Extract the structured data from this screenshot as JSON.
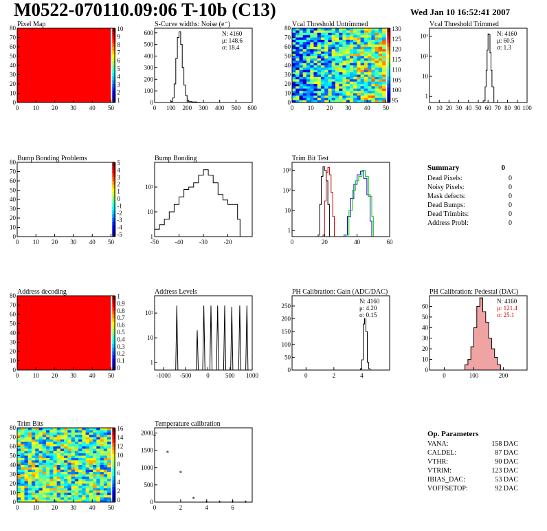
{
  "header": {
    "title": "M0522-070110.09:06 T-10b (C13)",
    "date": "Wed Jan 10 16:52:41 2007"
  },
  "panels": [
    {
      "id": "pixel-map",
      "title": "Pixel Map",
      "kind": "map",
      "fill": "#ff0000",
      "x": {
        "min": 0,
        "max": 52,
        "ticks": [
          0,
          10,
          20,
          30,
          40,
          50
        ]
      },
      "y": {
        "min": 0,
        "max": 80,
        "ticks": [
          0,
          10,
          20,
          30,
          40,
          50,
          60,
          70,
          80
        ]
      },
      "palette": {
        "labels": [
          "10",
          "9",
          "8",
          "7",
          "6",
          "5",
          "4",
          "3",
          "2",
          "1"
        ]
      }
    },
    {
      "id": "scurve-noise",
      "title": "S-Curve widths: Noise (e⁻)",
      "kind": "hist",
      "x": {
        "min": 0,
        "max": 600,
        "ticks": [
          0,
          100,
          200,
          300,
          400,
          500,
          600
        ]
      },
      "y": {
        "min": 0,
        "max": 640,
        "ticks": [
          0,
          100,
          200,
          300,
          400,
          500,
          600
        ]
      },
      "stats": [
        "N: 4160",
        "μ: 148.6",
        "σ: 18.4"
      ],
      "series": [
        {
          "color": "#000",
          "curve": [
            [
              90,
              0
            ],
            [
              100,
              8
            ],
            [
              110,
              40
            ],
            [
              120,
              160
            ],
            [
              130,
              380
            ],
            [
              140,
              560
            ],
            [
              150,
              610
            ],
            [
              160,
              500
            ],
            [
              170,
              300
            ],
            [
              180,
              150
            ],
            [
              190,
              60
            ],
            [
              200,
              20
            ],
            [
              210,
              8
            ],
            [
              230,
              4
            ],
            [
              260,
              2
            ],
            [
              280,
              0
            ]
          ]
        }
      ]
    },
    {
      "id": "vcal-untrimmed",
      "title": "Vcal Threshold Untrimmed",
      "kind": "heat",
      "x": {
        "min": 0,
        "max": 52,
        "ticks": [
          0,
          10,
          20,
          30,
          40,
          50
        ]
      },
      "y": {
        "min": 0,
        "max": 80,
        "ticks": [
          0,
          10,
          20,
          30,
          40,
          50,
          60,
          70,
          80
        ]
      },
      "palette": {
        "labels": [
          "130",
          "125",
          "120",
          "115",
          "110",
          "105",
          "100",
          "95"
        ]
      }
    },
    {
      "id": "vcal-trimmed",
      "title": "Vcal Threshold Trimmed",
      "kind": "hist",
      "log": true,
      "x": {
        "min": 0,
        "max": 100,
        "ticks": [
          0,
          10,
          20,
          30,
          40,
          50,
          60,
          70,
          80,
          90,
          100
        ]
      },
      "y": {
        "min": 0.5,
        "max": 2500,
        "ticks": [
          1,
          10,
          100,
          1000
        ],
        "tickLabels": [
          "1",
          "10",
          "10²",
          "10³"
        ]
      },
      "stats": [
        "N: 4160",
        "μ: 60.5",
        "σ:  1.3"
      ],
      "series": [
        {
          "color": "#000",
          "curve": [
            [
              55,
              0.6
            ],
            [
              57,
              3
            ],
            [
              58,
              20
            ],
            [
              59,
              200
            ],
            [
              60,
              1300
            ],
            [
              61,
              1200
            ],
            [
              62,
              150
            ],
            [
              63,
              20
            ],
            [
              64,
              3
            ],
            [
              66,
              0.6
            ]
          ]
        }
      ]
    },
    {
      "id": "bump-bonding-problems",
      "title": "Bump Bonding Problems",
      "kind": "empty",
      "x": {
        "min": 0,
        "max": 52,
        "ticks": [
          0,
          10,
          20,
          30,
          40,
          50
        ]
      },
      "y": {
        "min": 0,
        "max": 80,
        "ticks": [
          0,
          10,
          20,
          30,
          40,
          50,
          60,
          70,
          80
        ]
      },
      "palette": {
        "labels": [
          "5",
          "4",
          "3",
          "2",
          "1",
          "0",
          "-1",
          "-2",
          "-3",
          "-4",
          "-5"
        ]
      }
    },
    {
      "id": "bump-bonding",
      "title": "Bump Bonding",
      "kind": "hist",
      "log": true,
      "x": {
        "min": -50,
        "max": -10,
        "ticks": [
          -50,
          -40,
          -30,
          -20
        ]
      },
      "y": {
        "min": 1,
        "max": 1000,
        "ticks": [
          1,
          10,
          100
        ],
        "tickLabels": [
          "1",
          "10",
          "10²"
        ]
      },
      "series": [
        {
          "color": "#000",
          "curve": [
            [
              -50,
              2
            ],
            [
              -48,
              3
            ],
            [
              -46,
              5
            ],
            [
              -44,
              10
            ],
            [
              -42,
              20
            ],
            [
              -40,
              40
            ],
            [
              -38,
              80
            ],
            [
              -36,
              100
            ],
            [
              -34,
              150
            ],
            [
              -32,
              300
            ],
            [
              -30,
              500
            ],
            [
              -28,
              300
            ],
            [
              -26,
              150
            ],
            [
              -24,
              50
            ],
            [
              -22,
              30
            ],
            [
              -20,
              20
            ],
            [
              -18,
              20
            ],
            [
              -16,
              5
            ],
            [
              -15,
              1
            ]
          ]
        }
      ]
    },
    {
      "id": "trim-bit-test",
      "title": "Trim Bit Test",
      "kind": "hist",
      "log": true,
      "x": {
        "min": 0,
        "max": 60,
        "ticks": [
          0,
          20,
          40,
          60
        ]
      },
      "y": {
        "min": 0.5,
        "max": 2500,
        "ticks": [
          1,
          10,
          100,
          1000
        ],
        "tickLabels": [
          "1",
          "10",
          "10²",
          "10³"
        ]
      },
      "series": [
        {
          "color": "#000",
          "curve": [
            [
              16,
              0.6
            ],
            [
              17,
              20
            ],
            [
              18,
              500
            ],
            [
              19,
              1500
            ],
            [
              20,
              1000
            ],
            [
              21,
              300
            ],
            [
              22,
              20
            ],
            [
              23,
              0.6
            ]
          ]
        },
        {
          "color": "#cc0000",
          "curve": [
            [
              19,
              0.6
            ],
            [
              20,
              30
            ],
            [
              21,
              800
            ],
            [
              22,
              1400
            ],
            [
              23,
              600
            ],
            [
              24,
              80
            ],
            [
              25,
              5
            ],
            [
              26,
              0.6
            ]
          ]
        },
        {
          "color": "#0000cc",
          "curve": [
            [
              32,
              0.6
            ],
            [
              34,
              5
            ],
            [
              36,
              40
            ],
            [
              38,
              200
            ],
            [
              40,
              600
            ],
            [
              42,
              900
            ],
            [
              44,
              400
            ],
            [
              46,
              60
            ],
            [
              48,
              3
            ],
            [
              49,
              0.6
            ]
          ]
        },
        {
          "color": "#00cc00",
          "curve": [
            [
              33,
              0.6
            ],
            [
              35,
              10
            ],
            [
              37,
              100
            ],
            [
              39,
              300
            ],
            [
              41,
              500
            ],
            [
              43,
              1000
            ],
            [
              45,
              500
            ],
            [
              47,
              50
            ],
            [
              49,
              5
            ],
            [
              50,
              0.6
            ]
          ]
        }
      ]
    },
    {
      "id": "address-decoding",
      "title": "Address decoding",
      "kind": "map",
      "fill": "#ff0000",
      "x": {
        "min": 0,
        "max": 52,
        "ticks": [
          0,
          10,
          20,
          30,
          40,
          50
        ]
      },
      "y": {
        "min": 0,
        "max": 80,
        "ticks": [
          0,
          10,
          20,
          30,
          40,
          50,
          60,
          70,
          80
        ]
      },
      "palette": {
        "labels": [
          "1",
          "0.9",
          "0.8",
          "0.7",
          "0.6",
          "0.5",
          "0.4",
          "0.3",
          "0.2",
          "0.1",
          "0"
        ]
      }
    },
    {
      "id": "address-levels",
      "title": "Address Levels",
      "kind": "spikes",
      "log": true,
      "x": {
        "min": -1200,
        "max": 1000,
        "ticks": [
          -1000,
          -500,
          0,
          500,
          1000
        ]
      },
      "y": {
        "min": 0.5,
        "max": 500,
        "ticks": [
          1,
          10,
          100
        ],
        "tickLabels": [
          "1",
          "10",
          "10²"
        ]
      },
      "peaks": [
        -700,
        -240,
        -90,
        70,
        220,
        380,
        540,
        720,
        880
      ],
      "heights": [
        200,
        20,
        200,
        200,
        200,
        200,
        180,
        200,
        200
      ]
    },
    {
      "id": "ph-gain",
      "title": "PH Calibration: Gain (ADC/DAC)",
      "kind": "hist",
      "x": {
        "min": -1,
        "max": 6,
        "ticks": [
          0,
          2,
          4
        ]
      },
      "y": {
        "min": 0,
        "max": 290,
        "ticks": [
          0,
          50,
          100,
          150,
          200,
          250
        ]
      },
      "stats": [
        "N: 4160",
        "μ: 4.20",
        "σ: 0.15"
      ],
      "series": [
        {
          "color": "#000",
          "curve": [
            [
              3.7,
              0
            ],
            [
              3.9,
              5
            ],
            [
              4.0,
              40
            ],
            [
              4.1,
              180
            ],
            [
              4.2,
              250
            ],
            [
              4.3,
              150
            ],
            [
              4.4,
              30
            ],
            [
              4.5,
              5
            ],
            [
              4.6,
              0
            ]
          ]
        }
      ]
    },
    {
      "id": "ph-pedestal",
      "title": "PH Calibration: Pedestal (DAC)",
      "kind": "hist",
      "x": {
        "min": -50,
        "max": 280,
        "ticks": [
          0,
          100,
          200
        ]
      },
      "y": {
        "min": 0,
        "max": 70,
        "ticks": [
          0,
          10,
          20,
          30,
          40,
          50,
          60
        ]
      },
      "stats": [
        "N: 4160",
        "μ: 121.4",
        "σ: 25.1"
      ],
      "statColors": [
        "#000",
        "#cc0000",
        "#cc0000"
      ],
      "series": [
        {
          "color": "#000",
          "fillColor": "#d33",
          "curve": [
            [
              60,
              0
            ],
            [
              70,
              5
            ],
            [
              80,
              10
            ],
            [
              90,
              22
            ],
            [
              100,
              40
            ],
            [
              110,
              60
            ],
            [
              120,
              68
            ],
            [
              130,
              55
            ],
            [
              140,
              45
            ],
            [
              150,
              30
            ],
            [
              160,
              20
            ],
            [
              170,
              12
            ],
            [
              180,
              5
            ],
            [
              190,
              0
            ]
          ]
        }
      ]
    },
    {
      "id": "trim-bits",
      "title": "Trim Bits",
      "kind": "heat",
      "x": {
        "min": 0,
        "max": 52,
        "ticks": [
          0,
          10,
          20,
          30,
          40,
          50
        ]
      },
      "y": {
        "min": 0,
        "max": 80,
        "ticks": [
          0,
          10,
          20,
          30,
          40,
          50,
          60,
          70,
          80
        ]
      },
      "palette": {
        "labels": [
          "16",
          "14",
          "12",
          "10",
          "8",
          "6",
          "4",
          "2",
          "0"
        ]
      }
    },
    {
      "id": "temperature-calibration",
      "title": "Temperature calibration",
      "kind": "markers",
      "x": {
        "min": 0,
        "max": 7.5,
        "ticks": [
          0,
          2,
          4,
          6
        ]
      },
      "y": {
        "min": 0,
        "max": 2150,
        "ticks": [
          0,
          500,
          1000,
          1500,
          2000
        ]
      },
      "points": [
        [
          0,
          1980
        ],
        [
          1,
          1500
        ],
        [
          2,
          920
        ],
        [
          3,
          170
        ],
        [
          4,
          60
        ],
        [
          5,
          60
        ],
        [
          6,
          60
        ],
        [
          7,
          60
        ]
      ]
    }
  ],
  "summary": {
    "title": "Summary",
    "total": "0",
    "rows": [
      {
        "label": "Dead Pixels:",
        "value": "0"
      },
      {
        "label": "Noisy Pixels:",
        "value": "0"
      },
      {
        "label": "Mask defects:",
        "value": "0"
      },
      {
        "label": "Dead Bumps:",
        "value": "0"
      },
      {
        "label": "Dead Trimbits:",
        "value": "0"
      },
      {
        "label": "Address Probl:",
        "value": "0"
      }
    ]
  },
  "parameters": {
    "title": "Op. Parameters",
    "rows": [
      {
        "label": "VANA:",
        "value": "158 DAC"
      },
      {
        "label": "CALDEL:",
        "value": "87 DAC"
      },
      {
        "label": "VTHR:",
        "value": "90 DAC"
      },
      {
        "label": "VTRIM:",
        "value": "123 DAC"
      },
      {
        "label": "IBIAS_DAC:",
        "value": "53 DAC"
      },
      {
        "label": "VOFFSETOP:",
        "value": "92 DAC"
      }
    ]
  }
}
